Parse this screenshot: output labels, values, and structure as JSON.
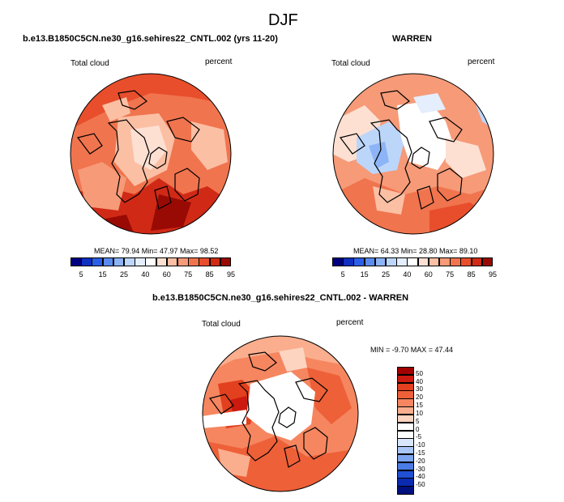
{
  "page": {
    "title": "DJF",
    "left_panel_title": "b.e13.B1850C5CN.ne30_g16.sehires22_CNTL.002 (yrs 11-20)",
    "right_panel_title": "WARREN",
    "diff_panel_title": "b.e13.B1850C5CN.ne30_g16.sehires22_CNTL.002 - WARREN"
  },
  "panels": {
    "left": {
      "variable": "Total cloud",
      "units": "percent",
      "stats": "MEAN=  79.94  Min=  47.97  Max=  98.52",
      "colorbar_ticks": [
        "5",
        "15",
        "25",
        "40",
        "60",
        "75",
        "85",
        "95"
      ]
    },
    "right": {
      "variable": "Total cloud",
      "units": "percent",
      "stats": "MEAN=  64.33  Min=  28.80  Max=  89.10",
      "colorbar_ticks": [
        "5",
        "15",
        "25",
        "40",
        "60",
        "75",
        "85",
        "95"
      ]
    },
    "diff": {
      "variable": "Total cloud",
      "units": "percent",
      "stats": "MIN = -9.70 MAX = 47.44",
      "colorbar_ticks": [
        "50",
        "40",
        "30",
        "20",
        "15",
        "10",
        "5",
        "0",
        "-5",
        "-10",
        "-15",
        "-20",
        "-30",
        "-40",
        "-50"
      ]
    }
  },
  "colors": {
    "abs_scale": [
      "#000080",
      "#1030c0",
      "#2c5fe8",
      "#5a8cf0",
      "#8cb4f6",
      "#bcd6fa",
      "#e4eefc",
      "#ffffff",
      "#fde0d2",
      "#fbbfa4",
      "#f69a78",
      "#f0744e",
      "#e84e2c",
      "#d02a16",
      "#9a0a04"
    ],
    "diff_scale": [
      "#a00000",
      "#cc1a10",
      "#e2401e",
      "#ee6038",
      "#f58660",
      "#faae8e",
      "#fdd4c0",
      "#ffffff",
      "#ffffff",
      "#d8e6fc",
      "#aac6f6",
      "#7ca4f0",
      "#4a7ce6",
      "#2050d4",
      "#0a2ab0",
      "#00107e"
    ]
  }
}
